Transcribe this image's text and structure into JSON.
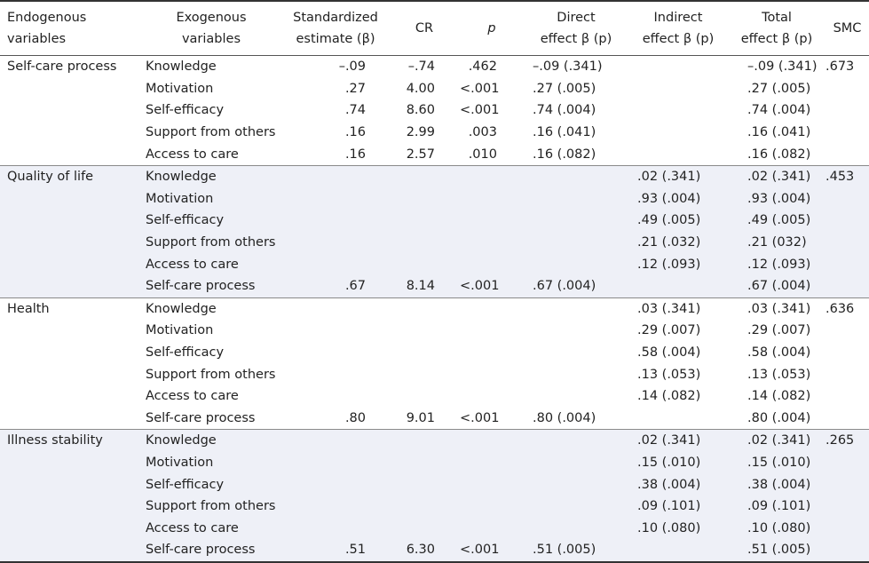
{
  "headers": {
    "endogenous": [
      "Endogenous",
      "variables"
    ],
    "exogenous": [
      "Exogenous",
      "variables"
    ],
    "std": [
      "Standardized",
      "estimate (β)"
    ],
    "cr": "CR",
    "p": "p",
    "direct": [
      "Direct",
      "effect β (p)"
    ],
    "indirect": [
      "Indirect",
      "effect β (p)"
    ],
    "total": [
      "Total",
      "effect β (p)"
    ],
    "smc": "SMC"
  },
  "groups": [
    {
      "endogenous": "Self-care process",
      "smc": ".673",
      "shaded": false,
      "rows": [
        {
          "exo": "Knowledge",
          "std": "–.09",
          "cr": "–.74",
          "p": ".462",
          "direct": "–.09 (.341)",
          "indirect": "",
          "total": "–.09 (.341)"
        },
        {
          "exo": "Motivation",
          "std": ".27",
          "cr": "4.00",
          "p": "<.001",
          "direct": ".27 (.005)",
          "indirect": "",
          "total": ".27 (.005)"
        },
        {
          "exo": "Self-efficacy",
          "std": ".74",
          "cr": "8.60",
          "p": "<.001",
          "direct": ".74 (.004)",
          "indirect": "",
          "total": ".74 (.004)"
        },
        {
          "exo": "Support from others",
          "std": ".16",
          "cr": "2.99",
          "p": ".003",
          "direct": ".16 (.041)",
          "indirect": "",
          "total": ".16 (.041)"
        },
        {
          "exo": "Access to care",
          "std": ".16",
          "cr": "2.57",
          "p": ".010",
          "direct": ".16 (.082)",
          "indirect": "",
          "total": ".16 (.082)"
        }
      ]
    },
    {
      "endogenous": "Quality of life",
      "smc": ".453",
      "shaded": true,
      "rows": [
        {
          "exo": "Knowledge",
          "std": "",
          "cr": "",
          "p": "",
          "direct": "",
          "indirect": ".02 (.341)",
          "total": ".02 (.341)"
        },
        {
          "exo": "Motivation",
          "std": "",
          "cr": "",
          "p": "",
          "direct": "",
          "indirect": ".93 (.004)",
          "total": ".93 (.004)"
        },
        {
          "exo": "Self-efficacy",
          "std": "",
          "cr": "",
          "p": "",
          "direct": "",
          "indirect": ".49 (.005)",
          "total": ".49 (.005)"
        },
        {
          "exo": "Support from others",
          "std": "",
          "cr": "",
          "p": "",
          "direct": "",
          "indirect": ".21 (.032)",
          "total": ".21 (032)"
        },
        {
          "exo": "Access to care",
          "std": "",
          "cr": "",
          "p": "",
          "direct": "",
          "indirect": ".12 (.093)",
          "total": ".12 (.093)"
        },
        {
          "exo": "Self-care process",
          "std": ".67",
          "cr": "8.14",
          "p": "<.001",
          "direct": ".67 (.004)",
          "indirect": "",
          "total": ".67 (.004)"
        }
      ]
    },
    {
      "endogenous": "Health",
      "smc": ".636",
      "shaded": false,
      "rows": [
        {
          "exo": "Knowledge",
          "std": "",
          "cr": "",
          "p": "",
          "direct": "",
          "indirect": ".03 (.341)",
          "total": ".03 (.341)"
        },
        {
          "exo": "Motivation",
          "std": "",
          "cr": "",
          "p": "",
          "direct": "",
          "indirect": ".29 (.007)",
          "total": ".29 (.007)"
        },
        {
          "exo": "Self-efficacy",
          "std": "",
          "cr": "",
          "p": "",
          "direct": "",
          "indirect": ".58 (.004)",
          "total": ".58 (.004)"
        },
        {
          "exo": "Support from others",
          "std": "",
          "cr": "",
          "p": "",
          "direct": "",
          "indirect": ".13 (.053)",
          "total": ".13 (.053)"
        },
        {
          "exo": "Access to care",
          "std": "",
          "cr": "",
          "p": "",
          "direct": "",
          "indirect": ".14 (.082)",
          "total": ".14 (.082)"
        },
        {
          "exo": "Self-care process",
          "std": ".80",
          "cr": "9.01",
          "p": "<.001",
          "direct": ".80 (.004)",
          "indirect": "",
          "total": ".80 (.004)"
        }
      ]
    },
    {
      "endogenous": "Illness stability",
      "smc": ".265",
      "shaded": true,
      "rows": [
        {
          "exo": "Knowledge",
          "std": "",
          "cr": "",
          "p": "",
          "direct": "",
          "indirect": ".02 (.341)",
          "total": ".02 (.341)"
        },
        {
          "exo": "Motivation",
          "std": "",
          "cr": "",
          "p": "",
          "direct": "",
          "indirect": ".15 (.010)",
          "total": ".15 (.010)"
        },
        {
          "exo": "Self-efficacy",
          "std": "",
          "cr": "",
          "p": "",
          "direct": "",
          "indirect": ".38 (.004)",
          "total": ".38 (.004)"
        },
        {
          "exo": "Support from others",
          "std": "",
          "cr": "",
          "p": "",
          "direct": "",
          "indirect": ".09 (.101)",
          "total": ".09 (.101)"
        },
        {
          "exo": "Access to care",
          "std": "",
          "cr": "",
          "p": "",
          "direct": "",
          "indirect": ".10 (.080)",
          "total": ".10 (.080)"
        },
        {
          "exo": "Self-care process",
          "std": ".51",
          "cr": "6.30",
          "p": "<.001",
          "direct": ".51 (.005)",
          "indirect": "",
          "total": ".51 (.005)"
        }
      ]
    }
  ]
}
